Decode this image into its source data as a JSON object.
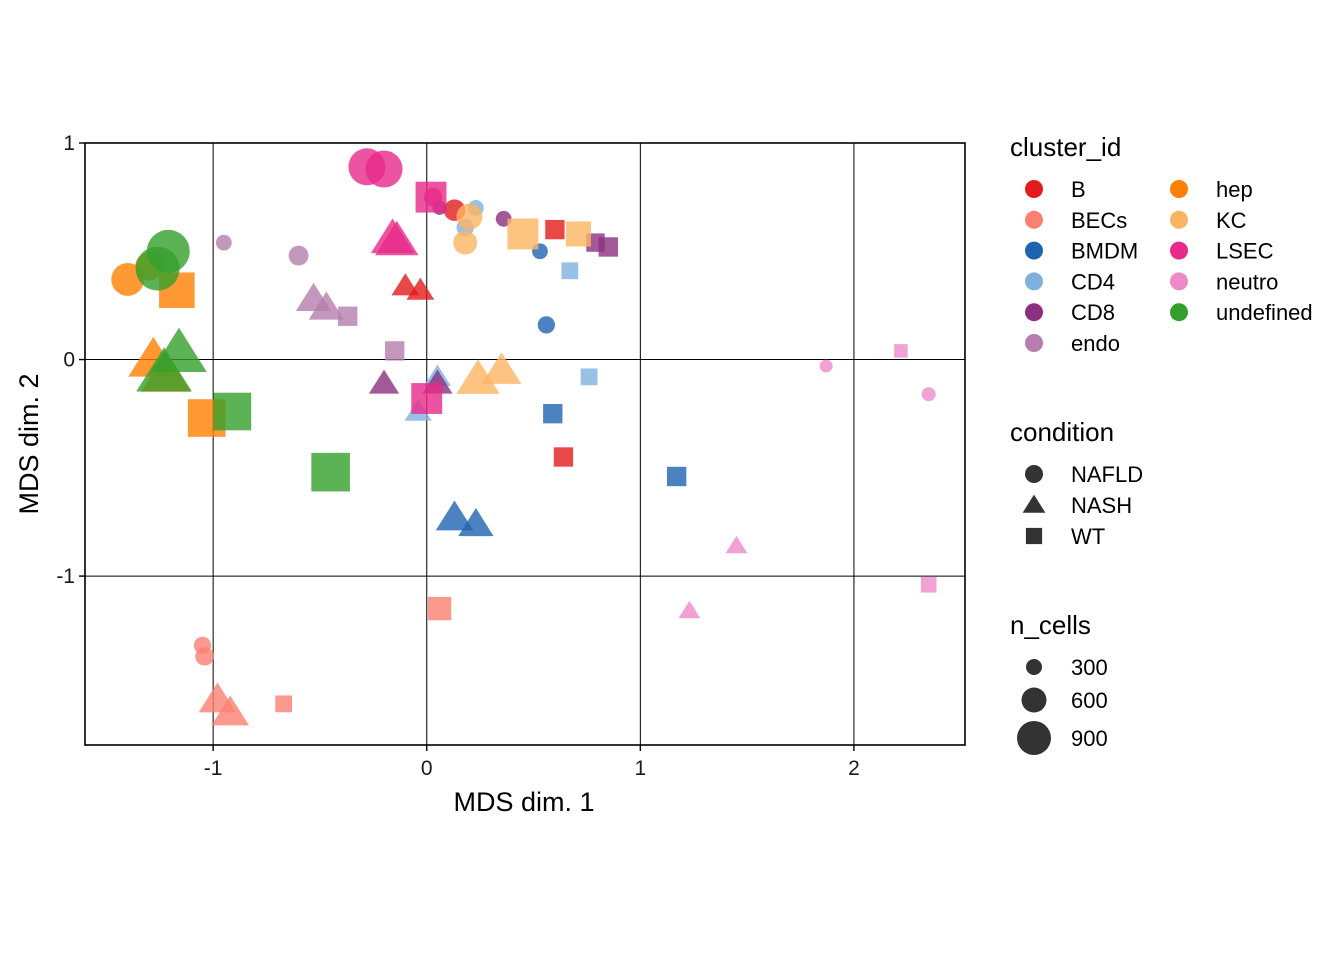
{
  "chart_data": {
    "type": "scatter",
    "xlabel": "MDS dim. 1",
    "ylabel": "MDS dim. 2",
    "xlim": [
      -1.6,
      2.52
    ],
    "ylim": [
      -1.78,
      1.0
    ],
    "xticks": [
      -1,
      0,
      1,
      2
    ],
    "yticks": [
      -1,
      0,
      1
    ],
    "xtick_labels": [
      "-1",
      "0",
      "1",
      "2"
    ],
    "ytick_labels": [
      "-1",
      "0",
      "1"
    ],
    "grid": true,
    "legend_position": "right",
    "point_opacity": 0.8,
    "legends": {
      "cluster": {
        "title": "cluster_id",
        "items": [
          {
            "name": "B",
            "color": "#E41A1C"
          },
          {
            "name": "BECs",
            "color": "#FB8072"
          },
          {
            "name": "BMDM",
            "color": "#1F63B0"
          },
          {
            "name": "CD4",
            "color": "#7FB0DE"
          },
          {
            "name": "CD8",
            "color": "#8B2F7F"
          },
          {
            "name": "endo",
            "color": "#B57EAC"
          },
          {
            "name": "hep",
            "color": "#FF7F00"
          },
          {
            "name": "KC",
            "color": "#FDB462"
          },
          {
            "name": "LSEC",
            "color": "#E7298A"
          },
          {
            "name": "neutro",
            "color": "#EE8AC8"
          },
          {
            "name": "undefined",
            "color": "#33A02C"
          }
        ]
      },
      "condition": {
        "title": "condition",
        "items": [
          {
            "name": "NAFLD",
            "shape": "circle"
          },
          {
            "name": "NASH",
            "shape": "triangle"
          },
          {
            "name": "WT",
            "shape": "square"
          }
        ]
      },
      "size": {
        "title": "n_cells",
        "items": [
          {
            "label": "300",
            "value": 300
          },
          {
            "label": "600",
            "value": 600
          },
          {
            "label": "900",
            "value": 900
          }
        ]
      }
    },
    "points": [
      {
        "cluster": "B",
        "condition": "NAFLD",
        "x": 0.13,
        "y": 0.69,
        "n_cells": 150
      },
      {
        "cluster": "B",
        "condition": "NASH",
        "x": -0.1,
        "y": 0.34,
        "n_cells": 160
      },
      {
        "cluster": "B",
        "condition": "NASH",
        "x": -0.03,
        "y": 0.32,
        "n_cells": 160
      },
      {
        "cluster": "B",
        "condition": "WT",
        "x": 0.6,
        "y": 0.6,
        "n_cells": 150
      },
      {
        "cluster": "B",
        "condition": "WT",
        "x": 0.64,
        "y": -0.45,
        "n_cells": 150
      },
      {
        "cluster": "BECs",
        "condition": "NAFLD",
        "x": -1.05,
        "y": -1.32,
        "n_cells": 80
      },
      {
        "cluster": "BECs",
        "condition": "NAFLD",
        "x": -1.04,
        "y": -1.37,
        "n_cells": 100
      },
      {
        "cluster": "BECs",
        "condition": "NASH",
        "x": -0.98,
        "y": -1.57,
        "n_cells": 350
      },
      {
        "cluster": "BECs",
        "condition": "NASH",
        "x": -0.92,
        "y": -1.63,
        "n_cells": 350
      },
      {
        "cluster": "BECs",
        "condition": "WT",
        "x": -0.67,
        "y": -1.59,
        "n_cells": 100
      },
      {
        "cluster": "BECs",
        "condition": "WT",
        "x": 0.06,
        "y": -1.15,
        "n_cells": 250
      },
      {
        "cluster": "BMDM",
        "condition": "NAFLD",
        "x": 0.53,
        "y": 0.5,
        "n_cells": 60
      },
      {
        "cluster": "BMDM",
        "condition": "NAFLD",
        "x": 0.56,
        "y": 0.16,
        "n_cells": 80
      },
      {
        "cluster": "BMDM",
        "condition": "NASH",
        "x": 0.13,
        "y": -0.73,
        "n_cells": 350
      },
      {
        "cluster": "BMDM",
        "condition": "NASH",
        "x": 0.23,
        "y": -0.76,
        "n_cells": 300
      },
      {
        "cluster": "BMDM",
        "condition": "WT",
        "x": 0.59,
        "y": -0.25,
        "n_cells": 150
      },
      {
        "cluster": "BMDM",
        "condition": "WT",
        "x": 1.17,
        "y": -0.54,
        "n_cells": 150
      },
      {
        "cluster": "CD4",
        "condition": "NAFLD",
        "x": 0.23,
        "y": 0.7,
        "n_cells": 60
      },
      {
        "cluster": "CD4",
        "condition": "NAFLD",
        "x": 0.18,
        "y": 0.61,
        "n_cells": 80
      },
      {
        "cluster": "CD4",
        "condition": "NASH",
        "x": 0.05,
        "y": -0.08,
        "n_cells": 150
      },
      {
        "cluster": "CD4",
        "condition": "NASH",
        "x": -0.04,
        "y": -0.24,
        "n_cells": 150
      },
      {
        "cluster": "CD4",
        "condition": "WT",
        "x": 0.67,
        "y": 0.41,
        "n_cells": 100
      },
      {
        "cluster": "CD4",
        "condition": "WT",
        "x": 0.76,
        "y": -0.08,
        "n_cells": 100
      },
      {
        "cluster": "CD8",
        "condition": "NAFLD",
        "x": 0.06,
        "y": 0.7,
        "n_cells": 40
      },
      {
        "cluster": "CD8",
        "condition": "NAFLD",
        "x": 0.36,
        "y": 0.65,
        "n_cells": 60
      },
      {
        "cluster": "CD8",
        "condition": "NASH",
        "x": -0.2,
        "y": -0.11,
        "n_cells": 200
      },
      {
        "cluster": "CD8",
        "condition": "NASH",
        "x": 0.05,
        "y": -0.11,
        "n_cells": 200
      },
      {
        "cluster": "CD8",
        "condition": "WT",
        "x": 0.79,
        "y": 0.54,
        "n_cells": 130
      },
      {
        "cluster": "CD8",
        "condition": "WT",
        "x": 0.85,
        "y": 0.52,
        "n_cells": 150
      },
      {
        "cluster": "endo",
        "condition": "NAFLD",
        "x": -0.95,
        "y": 0.54,
        "n_cells": 60
      },
      {
        "cluster": "endo",
        "condition": "NAFLD",
        "x": -0.6,
        "y": 0.48,
        "n_cells": 120
      },
      {
        "cluster": "endo",
        "condition": "NASH",
        "x": -0.53,
        "y": 0.28,
        "n_cells": 300
      },
      {
        "cluster": "endo",
        "condition": "NASH",
        "x": -0.47,
        "y": 0.24,
        "n_cells": 300
      },
      {
        "cluster": "endo",
        "condition": "WT",
        "x": -0.37,
        "y": 0.2,
        "n_cells": 150
      },
      {
        "cluster": "endo",
        "condition": "WT",
        "x": -0.15,
        "y": 0.04,
        "n_cells": 150
      },
      {
        "cluster": "hep",
        "condition": "NAFLD",
        "x": -1.4,
        "y": 0.37,
        "n_cells": 450
      },
      {
        "cluster": "hep",
        "condition": "NAFLD",
        "x": -1.3,
        "y": 0.43,
        "n_cells": 300
      },
      {
        "cluster": "hep",
        "condition": "NASH",
        "x": -1.28,
        "y": 0.0,
        "n_cells": 700
      },
      {
        "cluster": "hep",
        "condition": "NASH",
        "x": -1.22,
        "y": -0.07,
        "n_cells": 700
      },
      {
        "cluster": "hep",
        "condition": "WT",
        "x": -1.17,
        "y": 0.32,
        "n_cells": 700
      },
      {
        "cluster": "hep",
        "condition": "WT",
        "x": -1.03,
        "y": -0.27,
        "n_cells": 800
      },
      {
        "cluster": "KC",
        "condition": "NAFLD",
        "x": 0.2,
        "y": 0.66,
        "n_cells": 250
      },
      {
        "cluster": "KC",
        "condition": "NAFLD",
        "x": 0.18,
        "y": 0.54,
        "n_cells": 200
      },
      {
        "cluster": "KC",
        "condition": "NASH",
        "x": 0.24,
        "y": -0.09,
        "n_cells": 500
      },
      {
        "cluster": "KC",
        "condition": "NASH",
        "x": 0.35,
        "y": -0.05,
        "n_cells": 400
      },
      {
        "cluster": "KC",
        "condition": "WT",
        "x": 0.45,
        "y": 0.58,
        "n_cells": 500
      },
      {
        "cluster": "KC",
        "condition": "WT",
        "x": 0.71,
        "y": 0.58,
        "n_cells": 300
      },
      {
        "cluster": "LSEC",
        "condition": "NAFLD",
        "x": -0.28,
        "y": 0.89,
        "n_cells": 600
      },
      {
        "cluster": "LSEC",
        "condition": "NAFLD",
        "x": -0.2,
        "y": 0.88,
        "n_cells": 600
      },
      {
        "cluster": "LSEC",
        "condition": "NAFLD",
        "x": 0.03,
        "y": 0.75,
        "n_cells": 100
      },
      {
        "cluster": "LSEC",
        "condition": "NASH",
        "x": -0.16,
        "y": 0.56,
        "n_cells": 500
      },
      {
        "cluster": "LSEC",
        "condition": "NASH",
        "x": -0.14,
        "y": 0.55,
        "n_cells": 500
      },
      {
        "cluster": "LSEC",
        "condition": "WT",
        "x": 0.02,
        "y": 0.75,
        "n_cells": 500
      },
      {
        "cluster": "LSEC",
        "condition": "WT",
        "x": 0.0,
        "y": -0.18,
        "n_cells": 500
      },
      {
        "cluster": "neutro",
        "condition": "NAFLD",
        "x": 1.87,
        "y": -0.03,
        "n_cells": 30
      },
      {
        "cluster": "neutro",
        "condition": "NAFLD",
        "x": 2.35,
        "y": -0.16,
        "n_cells": 40
      },
      {
        "cluster": "neutro",
        "condition": "NASH",
        "x": 1.45,
        "y": -0.86,
        "n_cells": 80
      },
      {
        "cluster": "neutro",
        "condition": "NASH",
        "x": 1.23,
        "y": -1.16,
        "n_cells": 80
      },
      {
        "cluster": "neutro",
        "condition": "WT",
        "x": 2.22,
        "y": 0.04,
        "n_cells": 50
      },
      {
        "cluster": "neutro",
        "condition": "WT",
        "x": 2.35,
        "y": -1.04,
        "n_cells": 80
      },
      {
        "cluster": "undefined",
        "condition": "NAFLD",
        "x": -1.26,
        "y": 0.42,
        "n_cells": 900
      },
      {
        "cluster": "undefined",
        "condition": "NAFLD",
        "x": -1.21,
        "y": 0.5,
        "n_cells": 850
      },
      {
        "cluster": "undefined",
        "condition": "NASH",
        "x": -1.16,
        "y": 0.03,
        "n_cells": 900
      },
      {
        "cluster": "undefined",
        "condition": "NASH",
        "x": -1.23,
        "y": -0.06,
        "n_cells": 900
      },
      {
        "cluster": "undefined",
        "condition": "WT",
        "x": -0.91,
        "y": -0.24,
        "n_cells": 800
      },
      {
        "cluster": "undefined",
        "condition": "WT",
        "x": -0.45,
        "y": -0.52,
        "n_cells": 850
      }
    ]
  }
}
